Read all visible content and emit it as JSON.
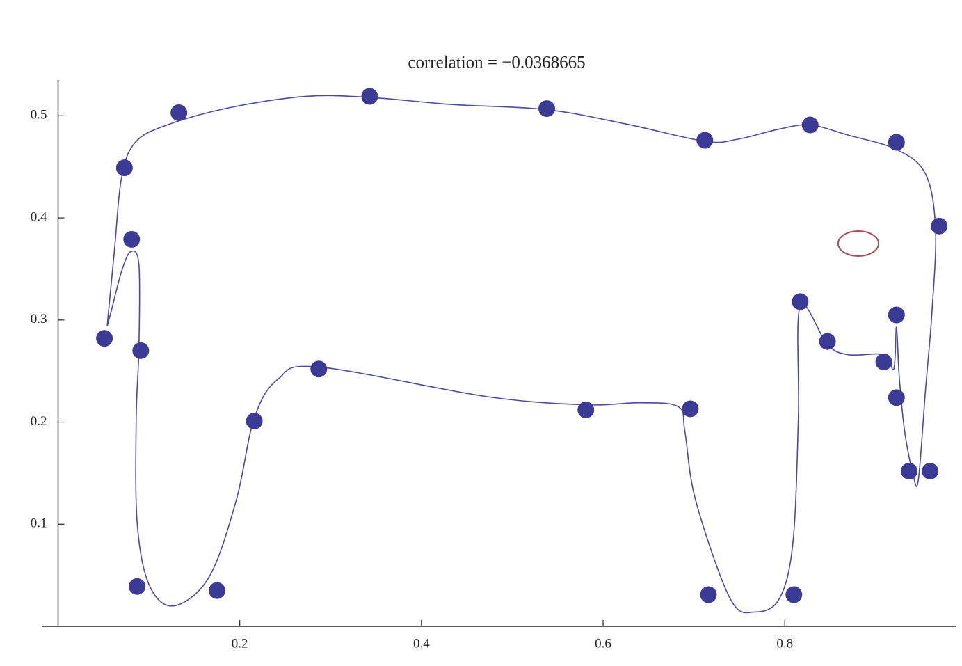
{
  "chart_data": {
    "type": "scatter",
    "title": "correlation = −0.0368665",
    "xlim": [
      -0.018,
      0.989
    ],
    "ylim": [
      0,
      0.535
    ],
    "xticks": [
      0.2,
      0.4,
      0.6,
      0.8
    ],
    "yticks": [
      0.1,
      0.2,
      0.3,
      0.4,
      0.5
    ],
    "series": [
      {
        "color": "#3b3b96",
        "x": [
          0.051,
          0.073,
          0.133,
          0.343,
          0.538,
          0.712,
          0.828,
          0.923,
          0.97,
          0.081,
          0.091,
          0.087,
          0.175,
          0.216,
          0.287,
          0.581,
          0.696,
          0.716,
          0.81,
          0.817,
          0.847,
          0.909,
          0.923,
          0.923,
          0.937,
          0.96
        ],
        "values": [
          0.282,
          0.449,
          0.503,
          0.519,
          0.507,
          0.476,
          0.491,
          0.474,
          0.392,
          0.379,
          0.27,
          0.039,
          0.035,
          0.201,
          0.252,
          0.212,
          0.213,
          0.031,
          0.031,
          0.318,
          0.279,
          0.259,
          0.305,
          0.224,
          0.152,
          0.152
        ]
      },
      {
        "color": "#4b4ba3",
        "line": true,
        "x": [
          0.054,
          0.062,
          0.07,
          0.085,
          0.12,
          0.189,
          0.273,
          0.343,
          0.434,
          0.538,
          0.625,
          0.712,
          0.748,
          0.794,
          0.828,
          0.87,
          0.923,
          0.955,
          0.966,
          0.962,
          0.955,
          0.947,
          0.941,
          0.932,
          0.926,
          0.923,
          0.92,
          0.909,
          0.87,
          0.847,
          0.817,
          0.815,
          0.809,
          0.794,
          0.767,
          0.74,
          0.702,
          0.69,
          0.683,
          0.641,
          0.581,
          0.472,
          0.287,
          0.242,
          0.216,
          0.196,
          0.166,
          0.127,
          0.1,
          0.087,
          0.086,
          0.089,
          0.089,
          0.08,
          0.07,
          0.058,
          0.054
        ],
        "values": [
          0.294,
          0.368,
          0.44,
          0.474,
          0.491,
          0.508,
          0.519,
          0.518,
          0.511,
          0.506,
          0.492,
          0.475,
          0.477,
          0.487,
          0.491,
          0.481,
          0.467,
          0.443,
          0.389,
          0.307,
          0.232,
          0.143,
          0.15,
          0.191,
          0.245,
          0.293,
          0.252,
          0.266,
          0.266,
          0.276,
          0.314,
          0.204,
          0.082,
          0.027,
          0.014,
          0.027,
          0.123,
          0.191,
          0.215,
          0.219,
          0.217,
          0.225,
          0.254,
          0.242,
          0.204,
          0.123,
          0.048,
          0.02,
          0.041,
          0.102,
          0.204,
          0.273,
          0.354,
          0.367,
          0.348,
          0.307,
          0.294
        ]
      }
    ]
  }
}
